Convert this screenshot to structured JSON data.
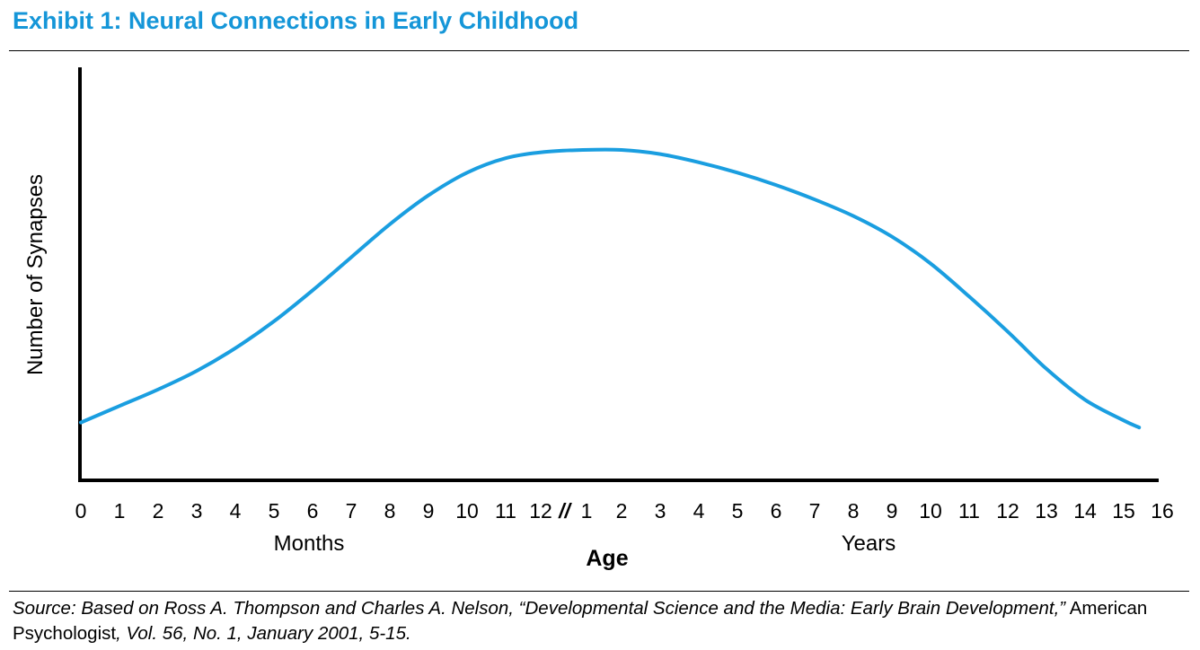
{
  "title": "Exhibit 1: Neural Connections in Early Childhood",
  "chart_data": {
    "type": "line",
    "ylabel": "Number of Synapses",
    "xlabel": "Age",
    "x_group_labels": [
      "Months",
      "Years"
    ],
    "x_ticks": [
      "0",
      "1",
      "2",
      "3",
      "4",
      "5",
      "6",
      "7",
      "8",
      "9",
      "10",
      "11",
      "12",
      "1",
      "2",
      "3",
      "4",
      "5",
      "6",
      "7",
      "8",
      "9",
      "10",
      "11",
      "12",
      "13",
      "14",
      "15",
      "16"
    ],
    "axis_break_marker": "//",
    "series": [
      {
        "color": "#1a9ee0",
        "points": [
          [
            0,
            0.14
          ],
          [
            1,
            0.18
          ],
          [
            2,
            0.22
          ],
          [
            3,
            0.265
          ],
          [
            4,
            0.32
          ],
          [
            5,
            0.385
          ],
          [
            6,
            0.46
          ],
          [
            7,
            0.54
          ],
          [
            8,
            0.62
          ],
          [
            9,
            0.69
          ],
          [
            10,
            0.745
          ],
          [
            11,
            0.78
          ],
          [
            12,
            0.795
          ],
          [
            13,
            0.8
          ],
          [
            14,
            0.8
          ],
          [
            15,
            0.79
          ],
          [
            16,
            0.77
          ],
          [
            17,
            0.745
          ],
          [
            18,
            0.715
          ],
          [
            19,
            0.68
          ],
          [
            20,
            0.64
          ],
          [
            21,
            0.59
          ],
          [
            22,
            0.525
          ],
          [
            23,
            0.445
          ],
          [
            24,
            0.36
          ],
          [
            25,
            0.27
          ],
          [
            26,
            0.195
          ],
          [
            27,
            0.145
          ],
          [
            27.4,
            0.128
          ]
        ]
      }
    ],
    "y_range": [
      0,
      1
    ],
    "x_range": [
      0,
      28
    ]
  },
  "source": {
    "prefix": "Source: Based on Ross A. Thompson and Charles A. Nelson, “Developmental Science and the Media: Early Brain Development,”",
    "journal": " American Psychologist",
    "suffix": ", Vol. 56, No. 1, January 2001, 5-15."
  }
}
